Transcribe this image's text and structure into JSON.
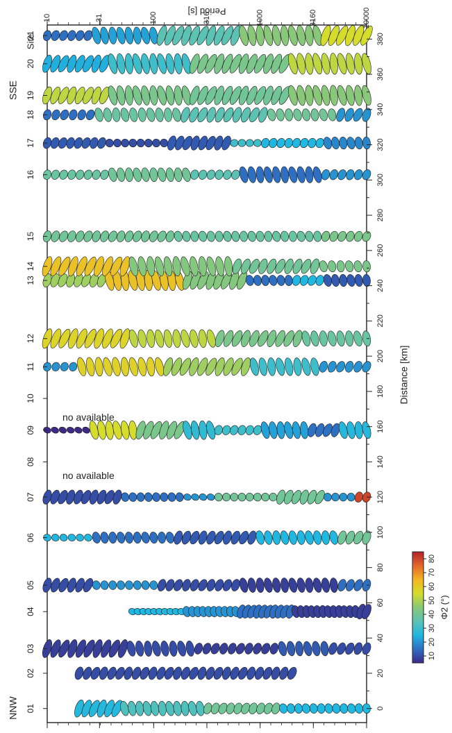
{
  "chart_data": {
    "type": "scatter",
    "description_axis": {
      "period_label": "Period [s]",
      "period_ticks": [
        "10",
        "31",
        "100",
        "316",
        "1000",
        "3160",
        "10000"
      ],
      "distance_label": "Distance [km]",
      "distance_ticks": [
        "0",
        "20",
        "40",
        "60",
        "80",
        "100",
        "120",
        "140",
        "160",
        "180",
        "200",
        "220",
        "240",
        "260",
        "280",
        "300",
        "320",
        "340",
        "360",
        "380"
      ],
      "distance_range": [
        -8,
        388
      ]
    },
    "site_header": "Site",
    "end_labels": {
      "south": "SSE",
      "north": "NNW"
    },
    "no_data_text": "no available",
    "colorbar": {
      "label": "Φ2 (°)",
      "ticks": [
        "10",
        "20",
        "30",
        "40",
        "50",
        "60",
        "70",
        "80"
      ],
      "range": [
        5,
        85
      ],
      "colors": [
        "#3b2a86",
        "#2e6fc2",
        "#20b7e0",
        "#5cc2b4",
        "#88c878",
        "#d6dc2c",
        "#f2b623",
        "#e4672a",
        "#b42128"
      ]
    },
    "sites": [
      {
        "label": "01",
        "distance": 0,
        "start": 1.3,
        "groups": [
          [
            6,
            26,
            0.75
          ],
          [
            11,
            33,
            0.55
          ],
          [
            10,
            40,
            0.35
          ],
          [
            12,
            25,
            0.25
          ]
        ]
      },
      {
        "label": "02",
        "distance": 20,
        "start": 1.3,
        "end": 3.3,
        "groups": [
          [
            27,
            10,
            0.45
          ]
        ]
      },
      {
        "label": "03",
        "distance": 34,
        "start": 1.0,
        "groups": [
          [
            10,
            8,
            0.8
          ],
          [
            8,
            10,
            0.6
          ],
          [
            10,
            8,
            0.35
          ],
          [
            6,
            12,
            0.55
          ],
          [
            5,
            10,
            0.4
          ]
        ]
      },
      {
        "label": "04",
        "distance": 55,
        "start": 1.8,
        "groups": [
          [
            10,
            25,
            0.05
          ],
          [
            10,
            20,
            0.3
          ],
          [
            10,
            15,
            0.5
          ],
          [
            12,
            8,
            0.4
          ],
          [
            2,
            8,
            0.6
          ]
        ]
      },
      {
        "label": "05",
        "distance": 70,
        "start": 1.0,
        "groups": [
          [
            6,
            10,
            0.55
          ],
          [
            8,
            20,
            0.2
          ],
          [
            10,
            10,
            0.4
          ],
          [
            12,
            8,
            0.55
          ],
          [
            4,
            15,
            0.4
          ]
        ]
      },
      {
        "label": "06",
        "distance": 97,
        "start": 1.0,
        "groups": [
          [
            6,
            25,
            0.08
          ],
          [
            10,
            15,
            0.35
          ],
          [
            10,
            12,
            0.5
          ],
          [
            10,
            25,
            0.5
          ],
          [
            4,
            40,
            0.5
          ]
        ]
      },
      {
        "label": "07",
        "distance": 120,
        "start": 1.0,
        "groups": [
          [
            10,
            10,
            0.55
          ],
          [
            8,
            15,
            0.2
          ],
          [
            4,
            20,
            0.05
          ],
          [
            8,
            40,
            0.15
          ],
          [
            6,
            40,
            0.55
          ],
          [
            4,
            20,
            0.15
          ],
          [
            2,
            80,
            0.3
          ]
        ]
      },
      {
        "label": "08",
        "distance": 140,
        "empty": true
      },
      {
        "label": "09",
        "distance": 158,
        "start": 1.0,
        "groups": [
          [
            6,
            0,
            0.02
          ],
          [
            6,
            55,
            0.8
          ],
          [
            6,
            42,
            0.8
          ],
          [
            4,
            28,
            0.8
          ],
          [
            6,
            30,
            0.25
          ],
          [
            6,
            22,
            0.7
          ],
          [
            4,
            15,
            0.5
          ],
          [
            4,
            26,
            0.7
          ]
        ]
      },
      {
        "label": "10",
        "distance": 176,
        "empty": true
      },
      {
        "label": "11",
        "distance": 194,
        "start": 1.0,
        "groups": [
          [
            4,
            20,
            0.2
          ],
          [
            10,
            58,
            0.8
          ],
          [
            10,
            48,
            0.8
          ],
          [
            8,
            30,
            0.75
          ],
          [
            6,
            20,
            0.35
          ]
        ]
      },
      {
        "label": "12",
        "distance": 210,
        "start": 1.0,
        "groups": [
          [
            10,
            57,
            0.9
          ],
          [
            10,
            52,
            0.75
          ],
          [
            10,
            42,
            0.7
          ],
          [
            8,
            38,
            0.6
          ]
        ]
      },
      {
        "label": "13",
        "distance": 243,
        "start": 1.0,
        "groups": [
          [
            8,
            48,
            0.5
          ],
          [
            10,
            62,
            0.9
          ],
          [
            8,
            44,
            0.8
          ],
          [
            6,
            15,
            0.3
          ],
          [
            4,
            25,
            0.3
          ],
          [
            6,
            12,
            0.4
          ]
        ]
      },
      {
        "label": "14",
        "distance": 251,
        "start": 1.0,
        "groups": [
          [
            10,
            62,
            0.9
          ],
          [
            12,
            44,
            0.85
          ],
          [
            10,
            40,
            0.6
          ],
          [
            6,
            42,
            0.35
          ]
        ]
      },
      {
        "label": "15",
        "distance": 268,
        "start": 1.0,
        "groups": [
          [
            16,
            40,
            0.35
          ],
          [
            18,
            38,
            0.3
          ],
          [
            6,
            42,
            0.3
          ]
        ]
      },
      {
        "label": "16",
        "distance": 303,
        "start": 1.0,
        "groups": [
          [
            8,
            38,
            0.25
          ],
          [
            10,
            40,
            0.5
          ],
          [
            6,
            35,
            0.25
          ],
          [
            10,
            15,
            0.65
          ],
          [
            6,
            20,
            0.3
          ]
        ]
      },
      {
        "label": "17",
        "distance": 321,
        "start": 1.0,
        "groups": [
          [
            8,
            12,
            0.35
          ],
          [
            8,
            10,
            0.15
          ],
          [
            8,
            12,
            0.55
          ],
          [
            4,
            30,
            0.1
          ],
          [
            8,
            25,
            0.25
          ],
          [
            6,
            18,
            0.4
          ]
        ]
      },
      {
        "label": "18",
        "distance": 337,
        "start": 1.0,
        "groups": [
          [
            6,
            15,
            0.3
          ],
          [
            10,
            38,
            0.5
          ],
          [
            10,
            35,
            0.6
          ],
          [
            8,
            40,
            0.4
          ],
          [
            4,
            20,
            0.5
          ]
        ]
      },
      {
        "label": "19",
        "distance": 348,
        "start": 1.0,
        "groups": [
          [
            8,
            52,
            0.75
          ],
          [
            10,
            42,
            0.85
          ],
          [
            12,
            40,
            0.85
          ],
          [
            10,
            45,
            0.9
          ]
        ]
      },
      {
        "label": "20",
        "distance": 366,
        "start": 1.0,
        "groups": [
          [
            8,
            24,
            0.75
          ],
          [
            10,
            30,
            0.9
          ],
          [
            12,
            42,
            0.9
          ],
          [
            10,
            52,
            0.95
          ]
        ]
      },
      {
        "label": "21",
        "distance": 382,
        "start": 1.0,
        "groups": [
          [
            6,
            15,
            0.3
          ],
          [
            8,
            22,
            0.7
          ],
          [
            10,
            35,
            0.9
          ],
          [
            10,
            45,
            0.9
          ],
          [
            6,
            55,
            0.95
          ]
        ]
      }
    ]
  }
}
